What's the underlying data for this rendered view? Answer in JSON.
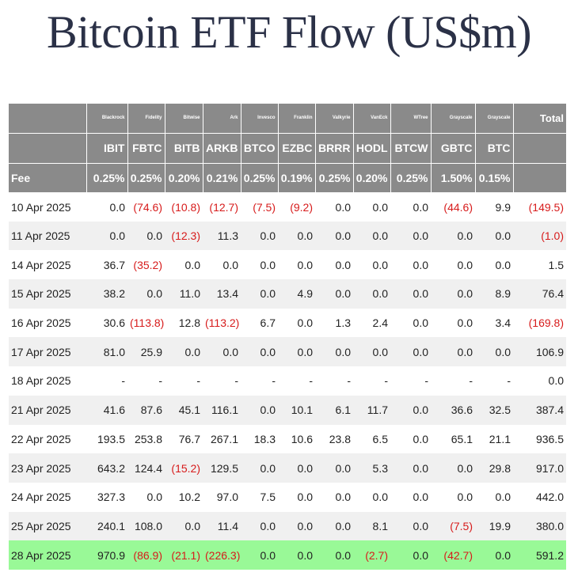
{
  "title": "Bitcoin ETF Flow (US$m)",
  "table": {
    "issuers": [
      "",
      "Blackrock",
      "Fidelity",
      "Bitwise",
      "Ark",
      "Invesco",
      "Franklin",
      "Valkyrie",
      "VanEck",
      "WTree",
      "Grayscale",
      "Grayscale",
      "Total"
    ],
    "tickers": [
      "",
      "IBIT",
      "FBTC",
      "BITB",
      "ARKB",
      "BTCO",
      "EZBC",
      "BRRR",
      "HODL",
      "BTCW",
      "GBTC",
      "BTC",
      ""
    ],
    "fees": [
      "Fee",
      "0.25%",
      "0.25%",
      "0.20%",
      "0.21%",
      "0.25%",
      "0.19%",
      "0.25%",
      "0.20%",
      "0.25%",
      "1.50%",
      "0.15%",
      ""
    ],
    "rows": [
      [
        "10 Apr 2025",
        "0.0",
        "(74.6)",
        "(10.8)",
        "(12.7)",
        "(7.5)",
        "(9.2)",
        "0.0",
        "0.0",
        "0.0",
        "(44.6)",
        "9.9",
        "(149.5)"
      ],
      [
        "11 Apr 2025",
        "0.0",
        "0.0",
        "(12.3)",
        "11.3",
        "0.0",
        "0.0",
        "0.0",
        "0.0",
        "0.0",
        "0.0",
        "0.0",
        "(1.0)"
      ],
      [
        "14 Apr 2025",
        "36.7",
        "(35.2)",
        "0.0",
        "0.0",
        "0.0",
        "0.0",
        "0.0",
        "0.0",
        "0.0",
        "0.0",
        "0.0",
        "1.5"
      ],
      [
        "15 Apr 2025",
        "38.2",
        "0.0",
        "11.0",
        "13.4",
        "0.0",
        "4.9",
        "0.0",
        "0.0",
        "0.0",
        "0.0",
        "8.9",
        "76.4"
      ],
      [
        "16 Apr 2025",
        "30.6",
        "(113.8)",
        "12.8",
        "(113.2)",
        "6.7",
        "0.0",
        "1.3",
        "2.4",
        "0.0",
        "0.0",
        "3.4",
        "(169.8)"
      ],
      [
        "17 Apr 2025",
        "81.0",
        "25.9",
        "0.0",
        "0.0",
        "0.0",
        "0.0",
        "0.0",
        "0.0",
        "0.0",
        "0.0",
        "0.0",
        "106.9"
      ],
      [
        "18 Apr 2025",
        "-",
        "-",
        "-",
        "-",
        "-",
        "-",
        "-",
        "-",
        "-",
        "-",
        "-",
        "0.0"
      ],
      [
        "21 Apr 2025",
        "41.6",
        "87.6",
        "45.1",
        "116.1",
        "0.0",
        "10.1",
        "6.1",
        "11.7",
        "0.0",
        "36.6",
        "32.5",
        "387.4"
      ],
      [
        "22 Apr 2025",
        "193.5",
        "253.8",
        "76.7",
        "267.1",
        "18.3",
        "10.6",
        "23.8",
        "6.5",
        "0.0",
        "65.1",
        "21.1",
        "936.5"
      ],
      [
        "23 Apr 2025",
        "643.2",
        "124.4",
        "(15.2)",
        "129.5",
        "0.0",
        "0.0",
        "0.0",
        "5.3",
        "0.0",
        "0.0",
        "29.8",
        "917.0"
      ],
      [
        "24 Apr 2025",
        "327.3",
        "0.0",
        "10.2",
        "97.0",
        "7.5",
        "0.0",
        "0.0",
        "0.0",
        "0.0",
        "0.0",
        "0.0",
        "442.0"
      ],
      [
        "25 Apr 2025",
        "240.1",
        "108.0",
        "0.0",
        "11.4",
        "0.0",
        "0.0",
        "0.0",
        "8.1",
        "0.0",
        "(7.5)",
        "19.9",
        "380.0"
      ],
      [
        "28 Apr 2025",
        "970.9",
        "(86.9)",
        "(21.1)",
        "(226.3)",
        "0.0",
        "0.0",
        "0.0",
        "(2.7)",
        "0.0",
        "(42.7)",
        "0.0",
        "591.2"
      ]
    ],
    "highlight_row": "28 Apr 2025",
    "colors": {
      "header_bg": "#8a8a8a",
      "row_alt_bg": "#f0f0f0",
      "highlight_bg": "#99f997",
      "negative_text": "#d71b1b",
      "title_text": "#2b3147"
    }
  }
}
